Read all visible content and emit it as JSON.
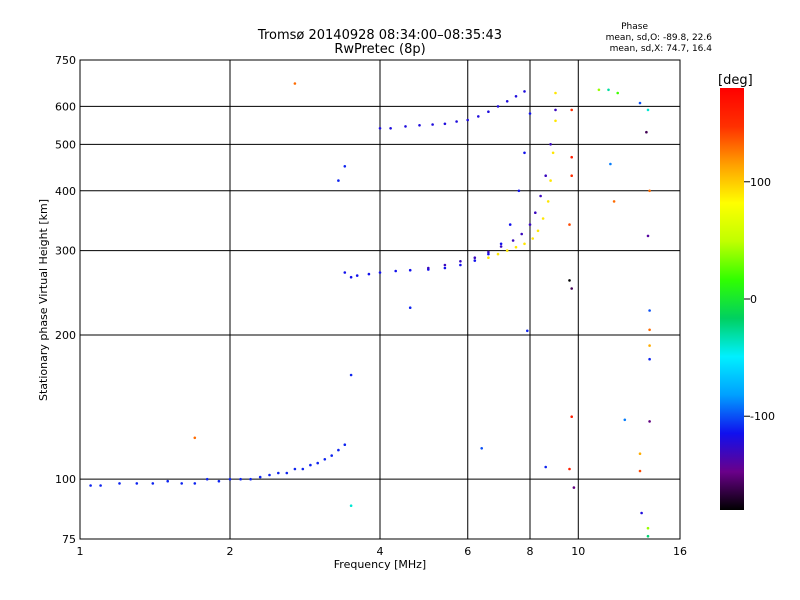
{
  "title": {
    "line1": "Tromsø 20140928 08:34:00–08:35:43",
    "line2": "RwPretec (8p)"
  },
  "stats": {
    "header": "Phase",
    "o_mode": "mean, sd,O: -89.8, 22.6",
    "x_mode": "mean, sd,X:  74.7, 16.4"
  },
  "chart_data": {
    "type": "scatter",
    "xlabel": "Frequency [MHz]",
    "ylabel": "Stationary phase Virtual Height [km]",
    "x_scale": "log",
    "y_scale": "log",
    "xlim": [
      1,
      16
    ],
    "ylim": [
      75,
      750
    ],
    "x_ticks": [
      1,
      2,
      4,
      6,
      8,
      10,
      16
    ],
    "y_ticks": [
      75,
      100,
      200,
      300,
      400,
      500,
      600,
      750
    ],
    "x_tick_labels": [
      "1",
      "2",
      "4",
      "6",
      "8",
      "10",
      "16"
    ],
    "y_tick_labels": [
      "75",
      "100",
      "200",
      "300",
      "400",
      "500",
      "600",
      "750"
    ],
    "grid": true,
    "colorbar": {
      "label": "[deg]",
      "range": [
        -180,
        180
      ],
      "ticks": [
        100,
        0,
        -100
      ],
      "tick_labels": [
        "100",
        "0",
        "-100"
      ],
      "colors": [
        "#000000",
        "#6a008a",
        "#1010ee",
        "#00a0ff",
        "#00f0ff",
        "#00d060",
        "#30ff00",
        "#c0ff00",
        "#ffff00",
        "#ffa000",
        "#ff3000",
        "#ff0000"
      ]
    },
    "series": [
      {
        "x": [
          1.05,
          1.1,
          1.2,
          1.3,
          1.4,
          1.5,
          1.6,
          1.7,
          1.8,
          1.9,
          2.0,
          2.1,
          2.2,
          2.3,
          2.4,
          2.5,
          2.6,
          2.7,
          2.8,
          2.9,
          3.0,
          3.1,
          3.2,
          3.3,
          3.4
        ],
        "y": [
          97,
          97,
          98,
          98,
          98,
          99,
          98,
          98,
          100,
          99,
          100,
          100,
          100,
          101,
          102,
          103,
          103,
          105,
          105,
          107,
          108,
          110,
          112,
          115,
          118
        ],
        "phase": -110
      },
      {
        "x": [
          3.4,
          3.5,
          3.6,
          3.8,
          4.0,
          4.3,
          4.6,
          5.0,
          5.4,
          5.8,
          6.2,
          6.6,
          7.0,
          7.3,
          7.6,
          7.8,
          8.0
        ],
        "y": [
          270,
          264,
          266,
          268,
          270,
          272,
          273,
          274,
          276,
          280,
          286,
          295,
          310,
          340,
          400,
          480,
          580
        ],
        "phase": -115
      },
      {
        "x": [
          4.0,
          4.2,
          4.5,
          4.8,
          5.1,
          5.4,
          5.7,
          6.0,
          6.3,
          6.6,
          6.9,
          7.2,
          7.5,
          7.8
        ],
        "y": [
          540,
          540,
          545,
          548,
          550,
          552,
          558,
          562,
          572,
          585,
          600,
          615,
          630,
          645
        ],
        "phase": -120
      },
      {
        "x": [
          5.0,
          5.4,
          5.8,
          6.2,
          6.6,
          7.0,
          7.4,
          7.7,
          8.0,
          8.2,
          8.4,
          8.6,
          8.8,
          9.0
        ],
        "y": [
          276,
          280,
          285,
          290,
          298,
          306,
          315,
          325,
          340,
          360,
          390,
          430,
          500,
          590
        ],
        "phase": -130
      },
      {
        "x": [
          6.6,
          6.9,
          7.2,
          7.5,
          7.8,
          8.1,
          8.3,
          8.5,
          8.7,
          8.8,
          8.9,
          9.0,
          9.0
        ],
        "y": [
          290,
          295,
          300,
          305,
          310,
          318,
          330,
          350,
          380,
          420,
          480,
          560,
          640
        ],
        "phase": 90
      }
    ],
    "isolated_points": [
      {
        "x": 3.3,
        "y": 420,
        "phase": -110
      },
      {
        "x": 3.4,
        "y": 450,
        "phase": -110
      },
      {
        "x": 4.6,
        "y": 228,
        "phase": -110
      },
      {
        "x": 1.7,
        "y": 122,
        "phase": 130
      },
      {
        "x": 2.7,
        "y": 670,
        "phase": 130
      },
      {
        "x": 7.9,
        "y": 204,
        "phase": -110
      },
      {
        "x": 6.4,
        "y": 116,
        "phase": -100
      },
      {
        "x": 8.6,
        "y": 106,
        "phase": -110
      },
      {
        "x": 9.8,
        "y": 96,
        "phase": -150
      },
      {
        "x": 9.6,
        "y": 260,
        "phase": -180
      },
      {
        "x": 9.7,
        "y": 250,
        "phase": -160
      },
      {
        "x": 9.7,
        "y": 135,
        "phase": 160
      },
      {
        "x": 9.6,
        "y": 105,
        "phase": 160
      },
      {
        "x": 9.6,
        "y": 340,
        "phase": 140
      },
      {
        "x": 9.7,
        "y": 430,
        "phase": 150
      },
      {
        "x": 9.7,
        "y": 470,
        "phase": 160
      },
      {
        "x": 9.7,
        "y": 590,
        "phase": 150
      },
      {
        "x": 11.0,
        "y": 650,
        "phase": 40
      },
      {
        "x": 11.5,
        "y": 650,
        "phase": -30
      },
      {
        "x": 12.0,
        "y": 640,
        "phase": 20
      },
      {
        "x": 11.6,
        "y": 455,
        "phase": -90
      },
      {
        "x": 11.8,
        "y": 380,
        "phase": 130
      },
      {
        "x": 12.4,
        "y": 133,
        "phase": -90
      },
      {
        "x": 13.3,
        "y": 610,
        "phase": -100
      },
      {
        "x": 13.7,
        "y": 530,
        "phase": -160
      },
      {
        "x": 13.8,
        "y": 590,
        "phase": -40
      },
      {
        "x": 13.9,
        "y": 400,
        "phase": 130
      },
      {
        "x": 13.8,
        "y": 322,
        "phase": -140
      },
      {
        "x": 13.9,
        "y": 225,
        "phase": -100
      },
      {
        "x": 13.9,
        "y": 205,
        "phase": 130
      },
      {
        "x": 13.9,
        "y": 190,
        "phase": 110
      },
      {
        "x": 13.9,
        "y": 178,
        "phase": -110
      },
      {
        "x": 13.9,
        "y": 132,
        "phase": -150
      },
      {
        "x": 13.3,
        "y": 113,
        "phase": 110
      },
      {
        "x": 13.3,
        "y": 104,
        "phase": 140
      },
      {
        "x": 13.4,
        "y": 85,
        "phase": -120
      },
      {
        "x": 13.8,
        "y": 79,
        "phase": 40
      },
      {
        "x": 13.8,
        "y": 76,
        "phase": -20
      },
      {
        "x": 3.5,
        "y": 165,
        "phase": -110
      },
      {
        "x": 3.5,
        "y": 88,
        "phase": -40
      }
    ]
  }
}
